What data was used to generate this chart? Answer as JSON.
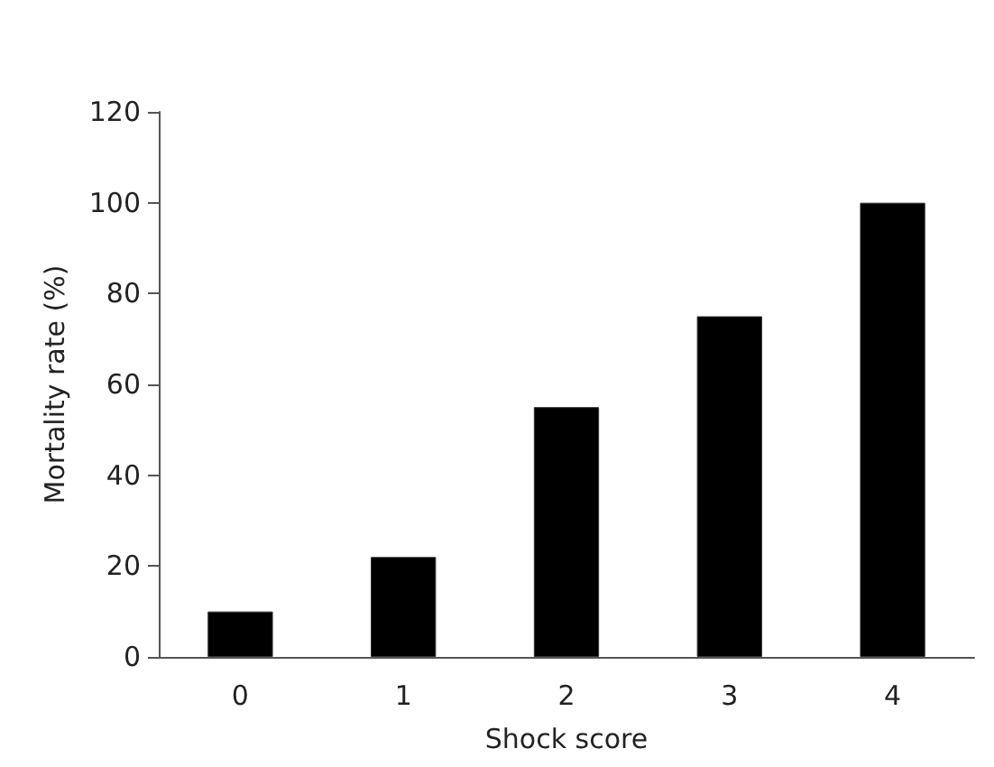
{
  "chart_data": {
    "type": "bar",
    "xlabel": "Shock score",
    "ylabel": "Mortality rate (%)",
    "categories": [
      "0",
      "1",
      "2",
      "3",
      "4"
    ],
    "values": [
      10,
      22,
      55,
      75,
      100
    ],
    "color": "#000000",
    "ylim": [
      0,
      120
    ],
    "yticks": [
      0,
      20,
      40,
      60,
      80,
      100,
      120
    ],
    "grid": false
  }
}
